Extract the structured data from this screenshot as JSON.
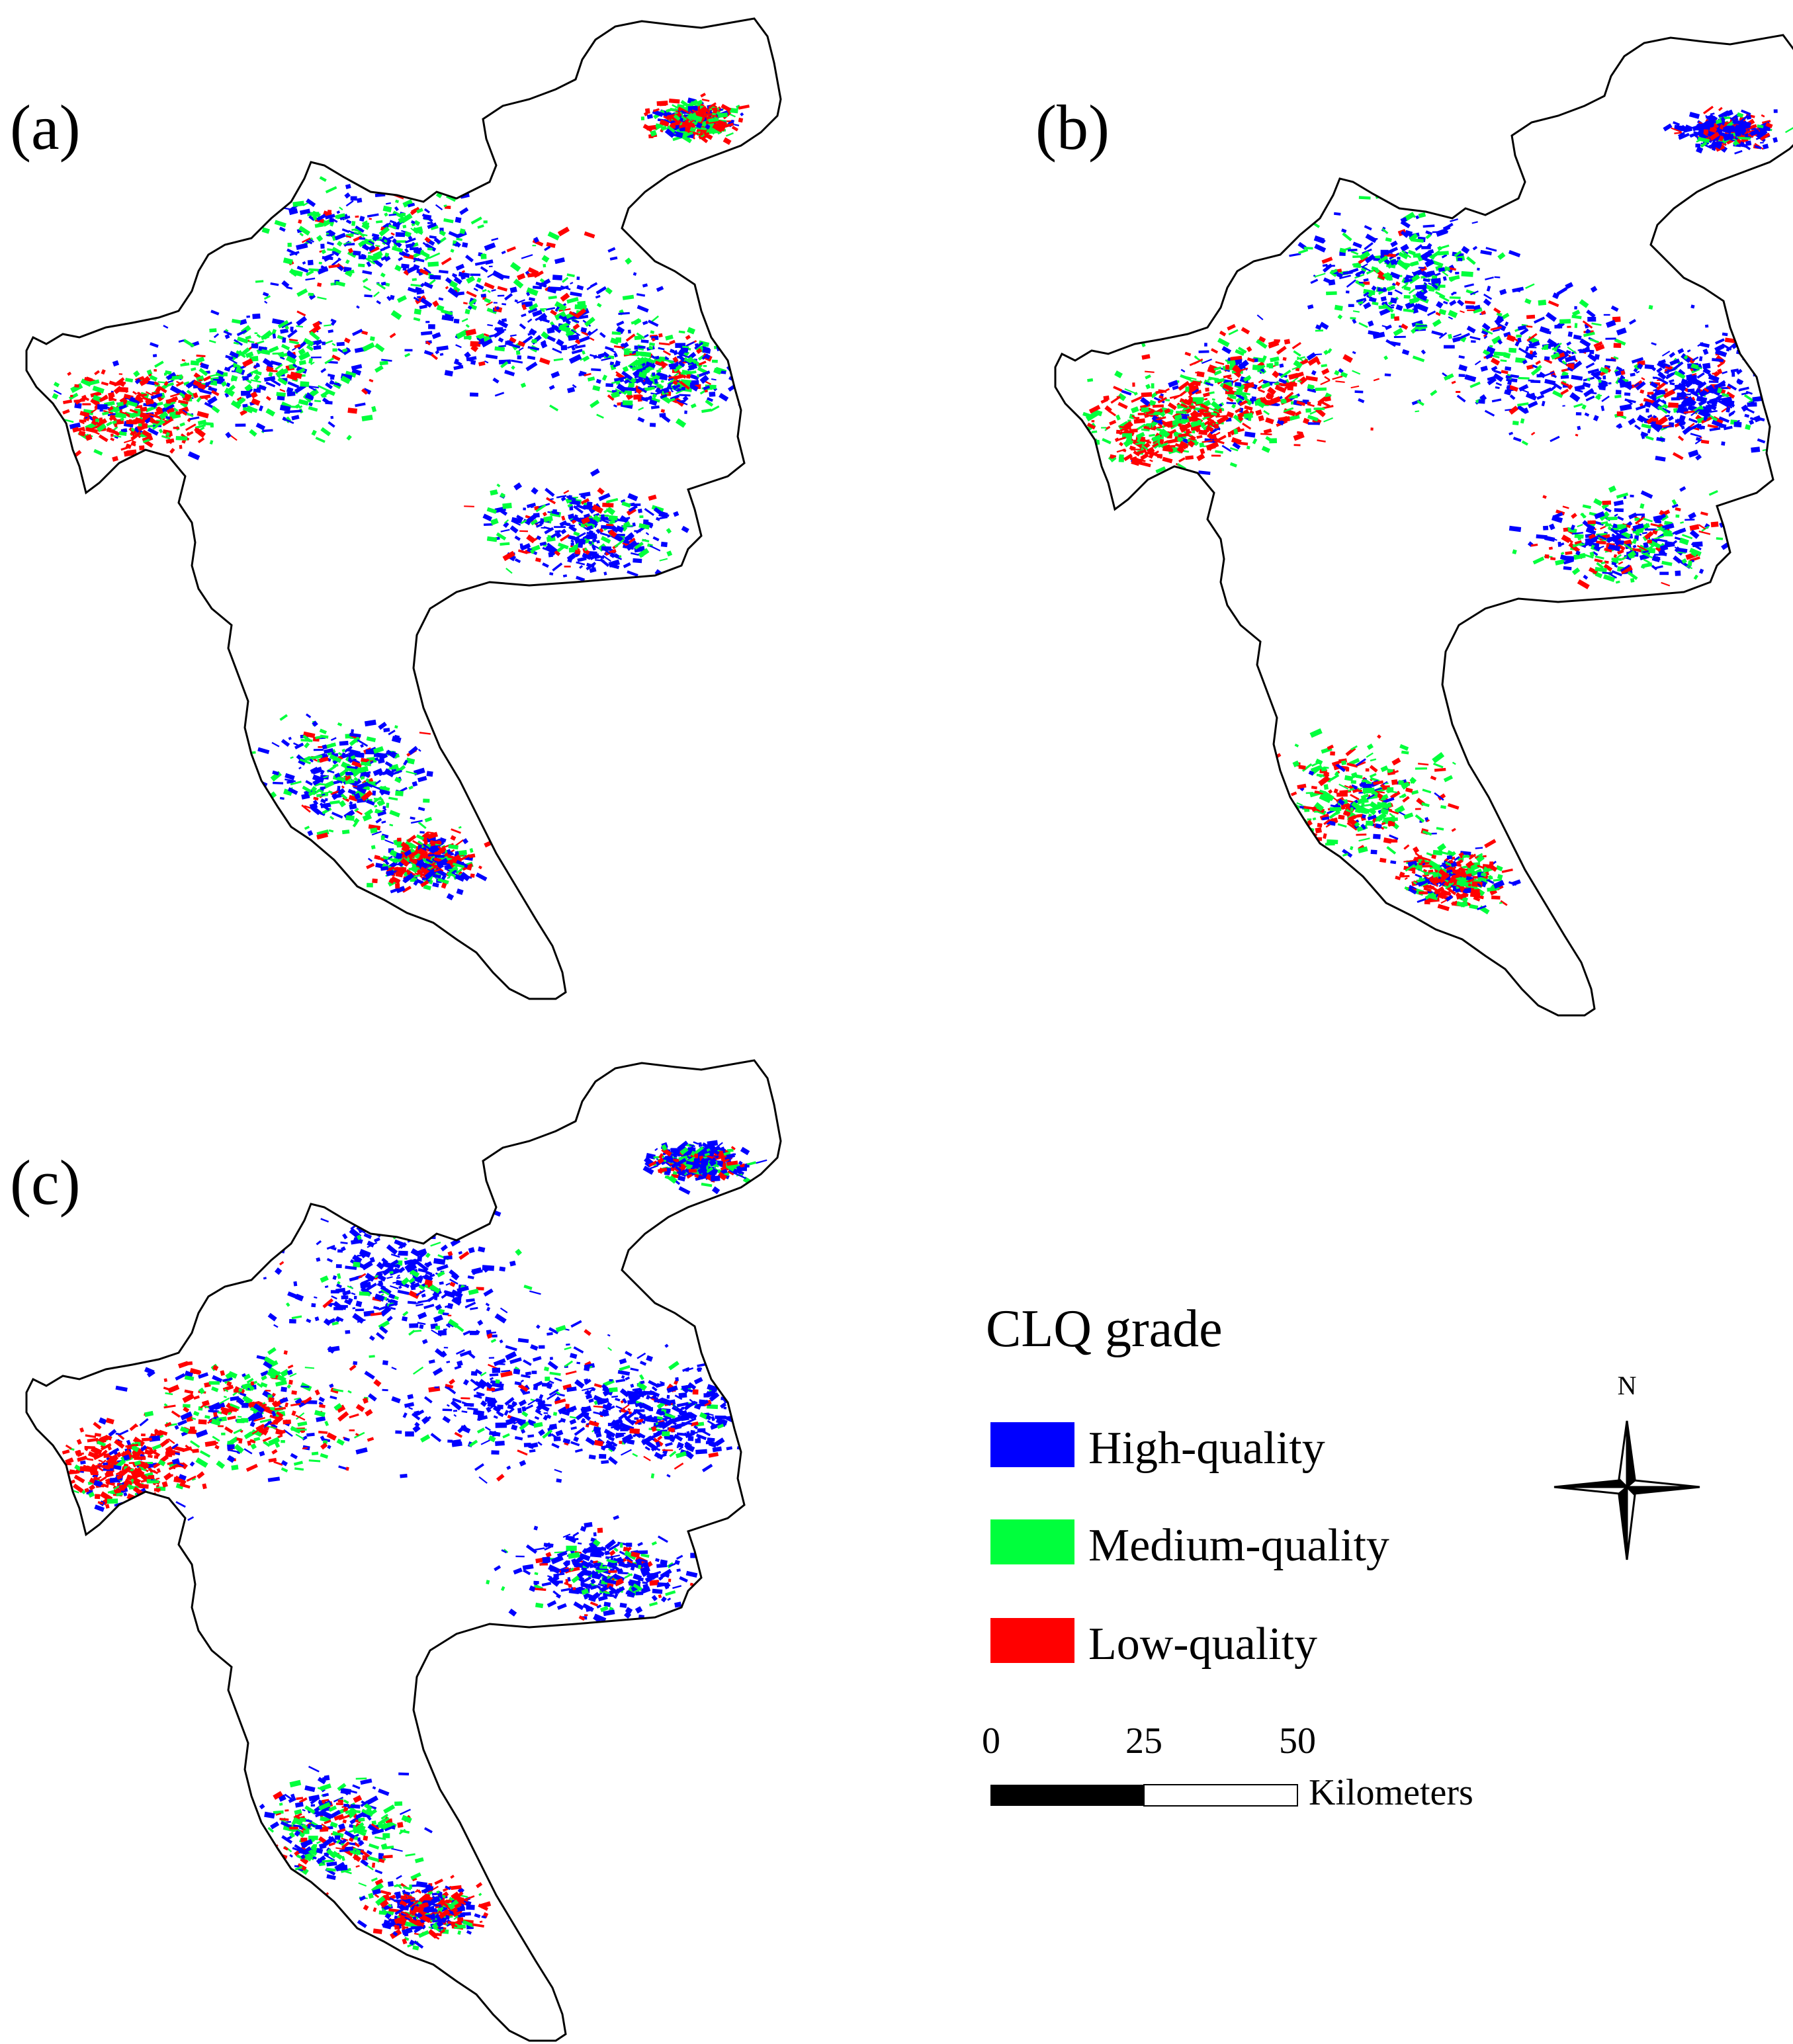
{
  "panels": [
    {
      "id": "a",
      "label": "(a)"
    },
    {
      "id": "b",
      "label": "(b)"
    },
    {
      "id": "c",
      "label": "(c)"
    }
  ],
  "legend": {
    "title": "CLQ grade",
    "items": [
      {
        "label": "High-quality",
        "color": "#0000ff"
      },
      {
        "label": "Medium-quality",
        "color": "#00ff3c"
      },
      {
        "label": "Low-quality",
        "color": "#ff0000"
      }
    ]
  },
  "scale_bar": {
    "ticks": [
      "0",
      "25",
      "50"
    ],
    "unit": "Kilometers"
  },
  "north_arrow": {
    "label": "N",
    "icon": "north-arrow-icon"
  }
}
